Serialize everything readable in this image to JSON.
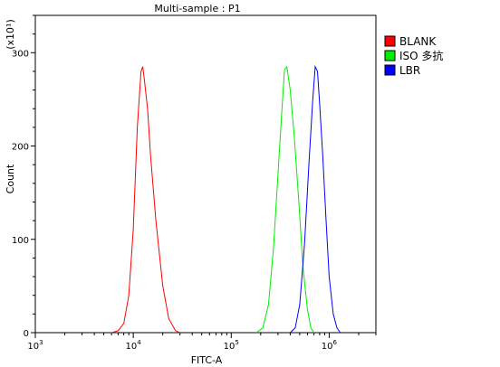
{
  "chart_data": {
    "type": "line",
    "title": "Multi-sample : P1",
    "xlabel": "FITC-A",
    "ylabel": "Count",
    "y_multiplier_label": "(x10¹)",
    "x_scale": "log",
    "xlim": [
      1000,
      3000000
    ],
    "ylim": [
      0,
      340
    ],
    "x_ticks": [
      {
        "value": 1000,
        "base": "10",
        "exp": "3"
      },
      {
        "value": 10000,
        "base": "10",
        "exp": "4"
      },
      {
        "value": 100000,
        "base": "10",
        "exp": "5"
      },
      {
        "value": 1000000,
        "base": "10",
        "exp": "6"
      }
    ],
    "y_ticks": [
      0,
      100,
      200,
      300
    ],
    "legend_position": "right",
    "series": [
      {
        "name": "BLANK",
        "color": "#ff0000",
        "points": [
          [
            6000,
            0
          ],
          [
            7000,
            2
          ],
          [
            8000,
            10
          ],
          [
            9000,
            40
          ],
          [
            10000,
            110
          ],
          [
            11000,
            220
          ],
          [
            12000,
            280
          ],
          [
            12500,
            285
          ],
          [
            13000,
            270
          ],
          [
            14000,
            240
          ],
          [
            15000,
            190
          ],
          [
            17000,
            120
          ],
          [
            20000,
            50
          ],
          [
            23000,
            15
          ],
          [
            27000,
            2
          ],
          [
            30000,
            0
          ]
        ]
      },
      {
        "name": "ISO 多抗",
        "color": "#00ee00",
        "points": [
          [
            180000,
            0
          ],
          [
            210000,
            5
          ],
          [
            240000,
            30
          ],
          [
            270000,
            90
          ],
          [
            300000,
            170
          ],
          [
            330000,
            240
          ],
          [
            350000,
            282
          ],
          [
            370000,
            285
          ],
          [
            400000,
            260
          ],
          [
            440000,
            210
          ],
          [
            490000,
            140
          ],
          [
            540000,
            70
          ],
          [
            600000,
            25
          ],
          [
            650000,
            5
          ],
          [
            700000,
            0
          ]
        ]
      },
      {
        "name": "LBR",
        "color": "#0000ff",
        "points": [
          [
            400000,
            0
          ],
          [
            450000,
            5
          ],
          [
            500000,
            30
          ],
          [
            560000,
            95
          ],
          [
            620000,
            180
          ],
          [
            680000,
            250
          ],
          [
            720000,
            285
          ],
          [
            760000,
            280
          ],
          [
            800000,
            245
          ],
          [
            860000,
            190
          ],
          [
            930000,
            120
          ],
          [
            1000000,
            60
          ],
          [
            1100000,
            20
          ],
          [
            1200000,
            5
          ],
          [
            1300000,
            0
          ]
        ]
      }
    ]
  }
}
